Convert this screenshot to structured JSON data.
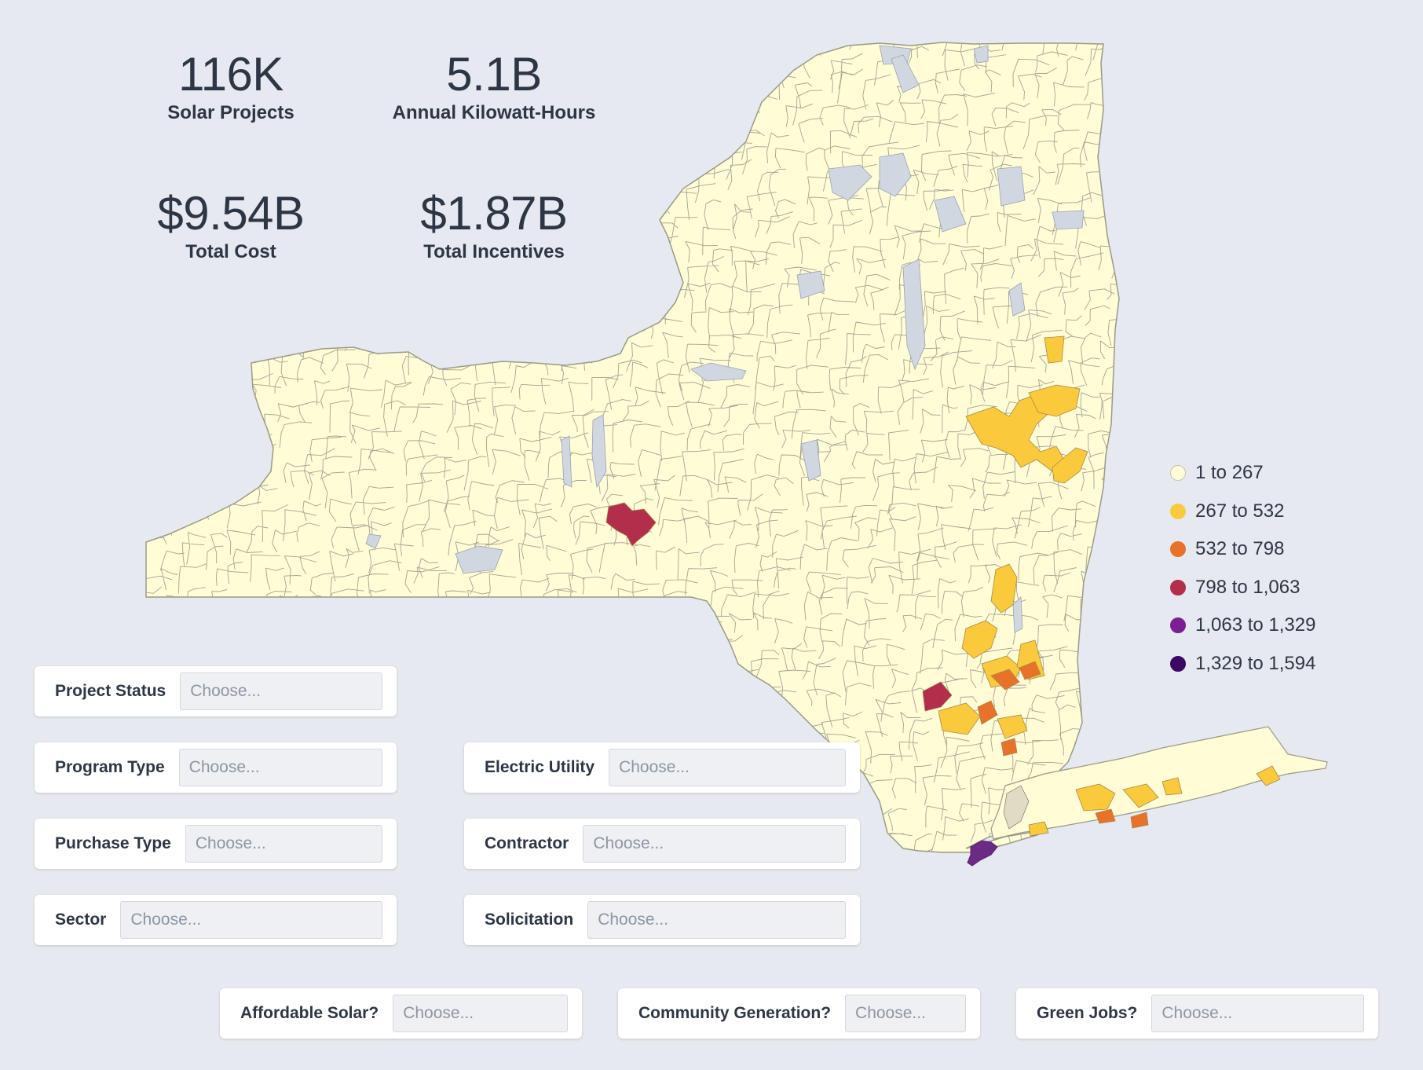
{
  "stats": {
    "solar_projects": {
      "value": "116K",
      "label": "Solar Projects"
    },
    "annual_kwh": {
      "value": "5.1B",
      "label": "Annual Kilowatt-Hours"
    },
    "total_cost": {
      "value": "$9.54B",
      "label": "Total Cost"
    },
    "total_incentives": {
      "value": "$1.87B",
      "label": "Total Incentives"
    }
  },
  "map": {
    "region": "New York State",
    "metric": "Solar Projects",
    "land_color": "#fffcd6",
    "boundary_color": "#9a9a88",
    "water_color": "#d0d7e1"
  },
  "legend": {
    "items": [
      {
        "label": "1 to 267",
        "color": "#fefcd6"
      },
      {
        "label": "267 to 532",
        "color": "#fbca3c"
      },
      {
        "label": "532 to 798",
        "color": "#e8722a"
      },
      {
        "label": "798 to 1,063",
        "color": "#b22e4a"
      },
      {
        "label": "1,063 to 1,329",
        "color": "#7a2093"
      },
      {
        "label": "1,329 to 1,594",
        "color": "#3b0866"
      }
    ]
  },
  "filters": {
    "placeholder": "Choose...",
    "project_status": "Project Status",
    "program_type": "Program Type",
    "purchase_type": "Purchase Type",
    "sector": "Sector",
    "electric_utility": "Electric Utility",
    "contractor": "Contractor",
    "solicitation": "Solicitation",
    "affordable_solar": "Affordable Solar?",
    "community_generation": "Community Generation?",
    "green_jobs": "Green Jobs?"
  }
}
